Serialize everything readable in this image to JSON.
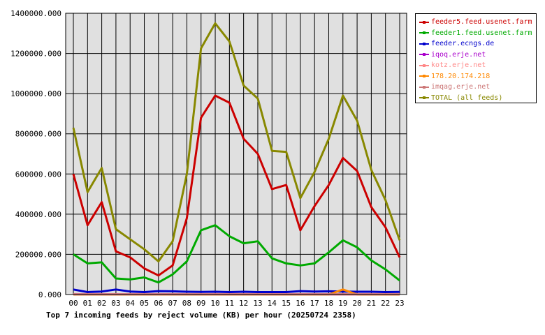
{
  "chart_data": {
    "type": "line",
    "title": "Top 7 incoming feeds by reject volume (KB) per hour (20250724 2358)",
    "xlabel": "",
    "ylabel": "",
    "x": [
      "00",
      "01",
      "02",
      "03",
      "04",
      "05",
      "06",
      "07",
      "08",
      "09",
      "10",
      "11",
      "12",
      "13",
      "14",
      "15",
      "16",
      "17",
      "18",
      "19",
      "20",
      "21",
      "22",
      "23"
    ],
    "yticks": [
      "0.000",
      "200000.000",
      "400000.000",
      "600000.000",
      "800000.000",
      "1000000.000",
      "1200000.000",
      "1400000.000"
    ],
    "ylim": [
      0,
      1400000
    ],
    "grid": true,
    "legend_position": "top-right",
    "series": [
      {
        "name": "feeder5.feed.usenet.farm",
        "color": "#cc0000",
        "values": [
          600000,
          345000,
          460000,
          215000,
          185000,
          130000,
          95000,
          145000,
          380000,
          880000,
          990000,
          955000,
          775000,
          700000,
          525000,
          545000,
          320000,
          440000,
          545000,
          680000,
          615000,
          435000,
          335000,
          185000
        ]
      },
      {
        "name": "feeder1.feed.usenet.farm",
        "color": "#00aa00",
        "values": [
          200000,
          155000,
          160000,
          80000,
          75000,
          85000,
          60000,
          100000,
          165000,
          320000,
          345000,
          290000,
          255000,
          265000,
          180000,
          155000,
          145000,
          155000,
          210000,
          270000,
          235000,
          170000,
          125000,
          70000
        ]
      },
      {
        "name": "feeder.ecngs.de",
        "color": "#0000cc",
        "values": [
          25000,
          12000,
          15000,
          25000,
          15000,
          12000,
          17000,
          16000,
          14000,
          13000,
          14000,
          12000,
          14000,
          12000,
          12000,
          12000,
          17000,
          15000,
          16000,
          15000,
          14000,
          14000,
          12000,
          13000
        ]
      },
      {
        "name": "iqoq.erje.net",
        "color": "#aa00cc",
        "values": [
          1000,
          1000,
          1000,
          1000,
          1000,
          1000,
          1000,
          1000,
          1000,
          1000,
          1000,
          1000,
          1000,
          1000,
          1000,
          1000,
          1000,
          1000,
          1000,
          1000,
          1000,
          1000,
          1000,
          1000
        ]
      },
      {
        "name": "kotz.erje.net",
        "color": "#ff8888",
        "values": [
          1000,
          1000,
          1000,
          1000,
          1000,
          1000,
          1000,
          1000,
          1000,
          1000,
          1000,
          1000,
          1000,
          1000,
          1000,
          1000,
          1000,
          1000,
          1000,
          1000,
          1000,
          1000,
          1000,
          1000
        ]
      },
      {
        "name": "178.20.174.218",
        "color": "#ff8800",
        "values": [
          0,
          0,
          0,
          0,
          0,
          0,
          0,
          0,
          0,
          0,
          0,
          0,
          0,
          0,
          0,
          0,
          0,
          0,
          0,
          25000,
          0,
          0,
          0,
          0
        ]
      },
      {
        "name": "imqag.erje.net",
        "color": "#cc7777",
        "values": [
          1000,
          1000,
          1000,
          1000,
          1000,
          1000,
          1000,
          1000,
          1000,
          1000,
          1000,
          1000,
          1000,
          1000,
          1000,
          1000,
          1000,
          1000,
          1000,
          1000,
          1000,
          1000,
          1000,
          1000
        ]
      },
      {
        "name": "TOTAL (all feeds)",
        "color": "#888800",
        "values": [
          830000,
          510000,
          630000,
          325000,
          275000,
          225000,
          165000,
          265000,
          600000,
          1225000,
          1350000,
          1260000,
          1040000,
          975000,
          715000,
          710000,
          480000,
          610000,
          775000,
          990000,
          865000,
          620000,
          470000,
          270000
        ]
      }
    ]
  }
}
